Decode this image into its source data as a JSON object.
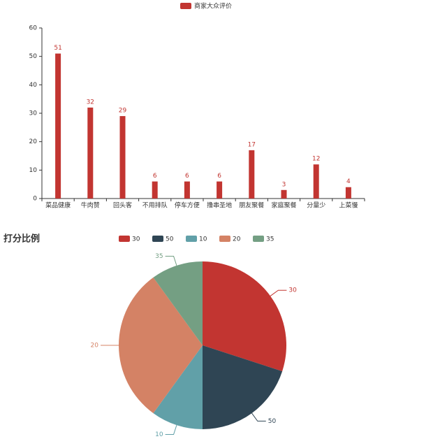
{
  "chart_data": [
    {
      "type": "bar",
      "categories": [
        "菜品健康",
        "牛肉赞",
        "回头客",
        "不用排队",
        "停车方便",
        "撸串圣地",
        "朋友聚餐",
        "家庭聚餐",
        "分量少",
        "上菜慢"
      ],
      "series": [
        {
          "name": "商家大众评价",
          "color": "#c23531",
          "values": [
            51,
            32,
            29,
            6,
            6,
            6,
            17,
            3,
            12,
            4
          ]
        }
      ],
      "ylim": [
        0,
        60
      ],
      "yticks": [
        0,
        10,
        20,
        30,
        40,
        50,
        60
      ],
      "grid": false,
      "legend": "top"
    },
    {
      "type": "pie",
      "title": "打分比例",
      "categories": [
        "30",
        "50",
        "10",
        "20",
        "35"
      ],
      "values": [
        3,
        2,
        1,
        3,
        1
      ],
      "colors": [
        "#c23531",
        "#2f4554",
        "#61a0a8",
        "#d48265",
        "#749f83"
      ],
      "legend": "top"
    }
  ]
}
